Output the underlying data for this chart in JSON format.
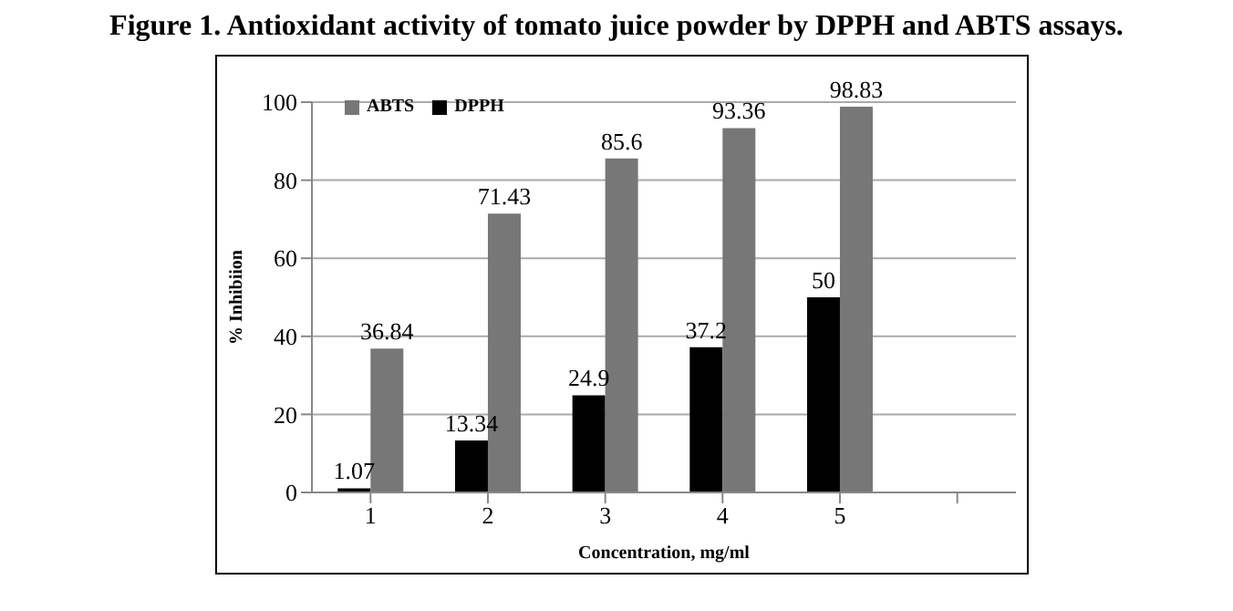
{
  "chart_data": {
    "type": "bar",
    "title": "Figure 1. Antioxidant activity of tomato juice powder by DPPH and ABTS assays.",
    "xlabel": "Concentration, mg/ml",
    "ylabel": "% Inhibiion",
    "categories": [
      "1",
      "2",
      "3",
      "4",
      "5",
      null
    ],
    "series": [
      {
        "name": "DPPH",
        "color": "#000000",
        "values": [
          1.07,
          13.34,
          24.9,
          37.2,
          50,
          null
        ]
      },
      {
        "name": "ABTS",
        "color": "#777777",
        "values": [
          36.84,
          71.43,
          85.6,
          93.36,
          98.83,
          null
        ]
      }
    ],
    "ylim": [
      0,
      100
    ],
    "yticks": [
      0,
      20,
      40,
      60,
      80,
      100
    ],
    "grid": "y",
    "legend": "top left",
    "data_labels": true
  }
}
